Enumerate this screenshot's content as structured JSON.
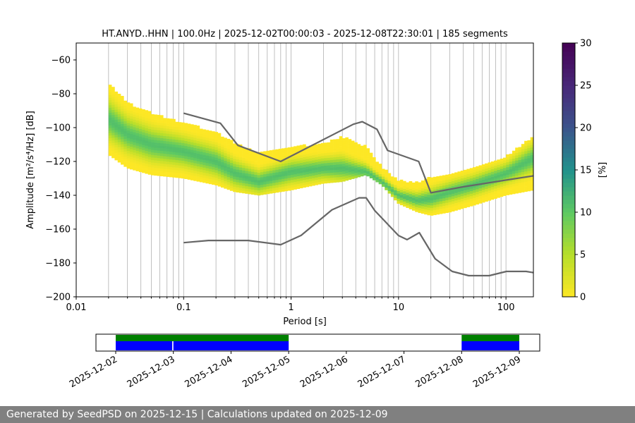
{
  "chart_data": [
    {
      "type": "heatmap",
      "title": "HT.ANYD..HHN | 100.0Hz | 2025-12-02T00:00:03 - 2025-12-08T22:30:01 | 185 segments",
      "xlabel": "Period [s]",
      "ylabel": "Amplitude [m²/s⁴/Hz] [dB]",
      "x_scale": "log",
      "xlim": [
        0.01,
        180
      ],
      "ylim": [
        -200,
        -50
      ],
      "x_ticks": [
        "0.01",
        "0.1",
        "1",
        "10",
        "100"
      ],
      "y_ticks": [
        "−60",
        "−80",
        "−100",
        "−120",
        "−140",
        "−160",
        "−180",
        "−200"
      ],
      "grid": "vertical at log minor ticks",
      "colorbar": {
        "label": "[%]",
        "range": [
          0,
          30
        ],
        "ticks": [
          "0",
          "5",
          "10",
          "15",
          "20",
          "25",
          "30"
        ],
        "colormap": "viridis_r"
      },
      "density_bands": [
        {
          "period": [
            0.02,
            0.03,
            0.05,
            0.1,
            0.2,
            0.3,
            0.5,
            1.0,
            2.0,
            3.0,
            5.0,
            7.0,
            10.0,
            15.0,
            20.0,
            30.0,
            50.0,
            100.0,
            180.0
          ],
          "lower": [
            -116,
            -124,
            -128,
            -130,
            -134,
            -138,
            -140,
            -137,
            -133,
            -132,
            -128,
            -134,
            -145,
            -150,
            -152,
            -150,
            -146,
            -140,
            -137
          ],
          "upper": [
            -74,
            -86,
            -92,
            -98,
            -103,
            -110,
            -116,
            -112,
            -110,
            -106,
            -112,
            -124,
            -132,
            -133,
            -130,
            -128,
            -124,
            -118,
            -106
          ],
          "center": [
            -95,
            -104,
            -110,
            -114,
            -120,
            -127,
            -132,
            -126,
            -124,
            -124,
            -126,
            -132,
            -140,
            -143,
            -142,
            -138,
            -134,
            -127,
            -118
          ]
        }
      ],
      "series": [
        {
          "role": "upper-noise-model",
          "x": [
            0.1,
            0.22,
            0.32,
            0.8,
            3.8,
            4.6,
            6.3,
            7.9,
            15.4,
            20.0,
            40.0,
            100.0,
            180.0
          ],
          "y": [
            -91.5,
            -97.4,
            -110.5,
            -120.0,
            -98.0,
            -96.5,
            -101.0,
            -113.5,
            -120.0,
            -138.5,
            -135.0,
            -131.0,
            -128.5
          ]
        },
        {
          "role": "lower-noise-model",
          "x": [
            0.1,
            0.17,
            0.4,
            0.8,
            1.24,
            2.4,
            4.3,
            5.0,
            6.0,
            10.0,
            12.0,
            15.6,
            21.9,
            31.6,
            45.0,
            70.0,
            101.0,
            154.0,
            180.0
          ],
          "y": [
            -168.0,
            -166.7,
            -166.7,
            -169.2,
            -163.7,
            -148.6,
            -141.5,
            -141.5,
            -149.0,
            -163.8,
            -166.2,
            -162.1,
            -177.5,
            -185.0,
            -187.5,
            -187.5,
            -185.0,
            -185.0,
            -185.7
          ]
        }
      ]
    },
    {
      "type": "timeline",
      "x_ticks": [
        "2025-12-02",
        "2025-12-03",
        "2025-12-04",
        "2025-12-05",
        "2025-12-06",
        "2025-12-07",
        "2025-12-08",
        "2025-12-09"
      ],
      "colors": {
        "data": "#008000",
        "psd": "#0000ff"
      },
      "data_spans": [
        [
          0.0,
          3.0
        ],
        [
          6.0,
          7.0
        ]
      ],
      "psd_spans": [
        [
          0.0,
          0.98
        ],
        [
          1.0,
          3.0
        ],
        [
          6.0,
          7.0
        ]
      ]
    }
  ],
  "footer": {
    "text": "Generated by SeedPSD on 2025-12-15 | Calculations updated on 2025-12-09"
  }
}
